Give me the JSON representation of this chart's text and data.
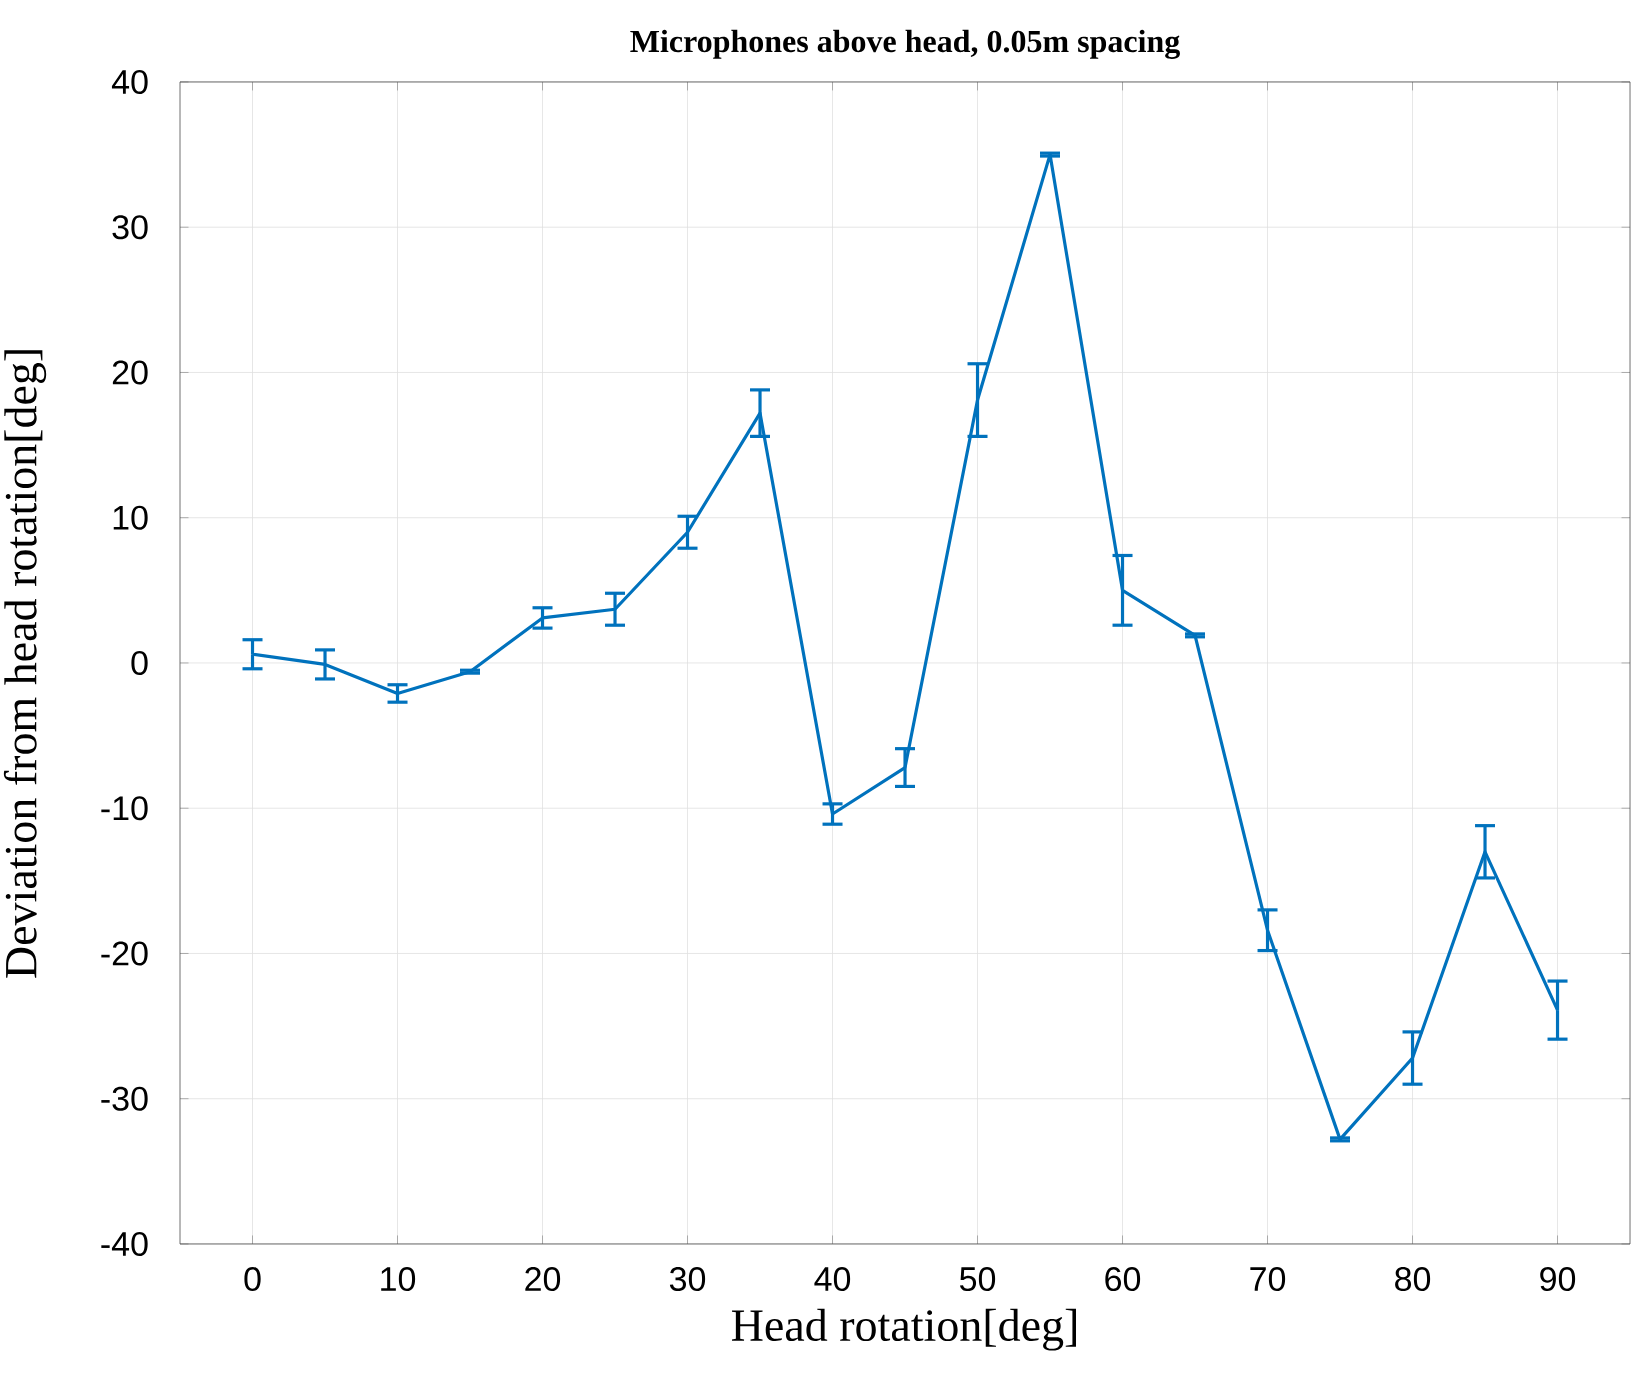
{
  "chart_data": {
    "type": "line",
    "title": "Microphones above head, 0.05m spacing",
    "xlabel": "Head rotation[deg]",
    "ylabel": "Deviation from head rotation[deg]",
    "x": [
      0,
      5,
      10,
      15,
      20,
      25,
      30,
      35,
      40,
      45,
      50,
      55,
      60,
      65,
      70,
      75,
      80,
      85,
      90
    ],
    "series": [
      {
        "color": "#0072bd",
        "values": [
          0.6,
          -0.1,
          -2.1,
          -0.6,
          3.1,
          3.7,
          9.0,
          17.2,
          -10.4,
          -7.2,
          18.1,
          35.0,
          5.0,
          1.9,
          -18.4,
          -32.8,
          -27.2,
          -13.0,
          -23.9
        ],
        "errors": [
          1.0,
          1.0,
          0.6,
          0.1,
          0.7,
          1.1,
          1.1,
          1.6,
          0.7,
          1.3,
          2.5,
          0.1,
          2.4,
          0.1,
          1.4,
          0.1,
          1.8,
          1.8,
          2.0
        ]
      }
    ],
    "xlim": [
      -5,
      95
    ],
    "ylim": [
      -40,
      40
    ],
    "xticks": [
      0,
      10,
      20,
      30,
      40,
      50,
      60,
      70,
      80,
      90
    ],
    "yticks": [
      -40,
      -30,
      -20,
      -10,
      0,
      10,
      20,
      30,
      40
    ],
    "grid": true,
    "marker": "none",
    "line_style": "solid"
  }
}
